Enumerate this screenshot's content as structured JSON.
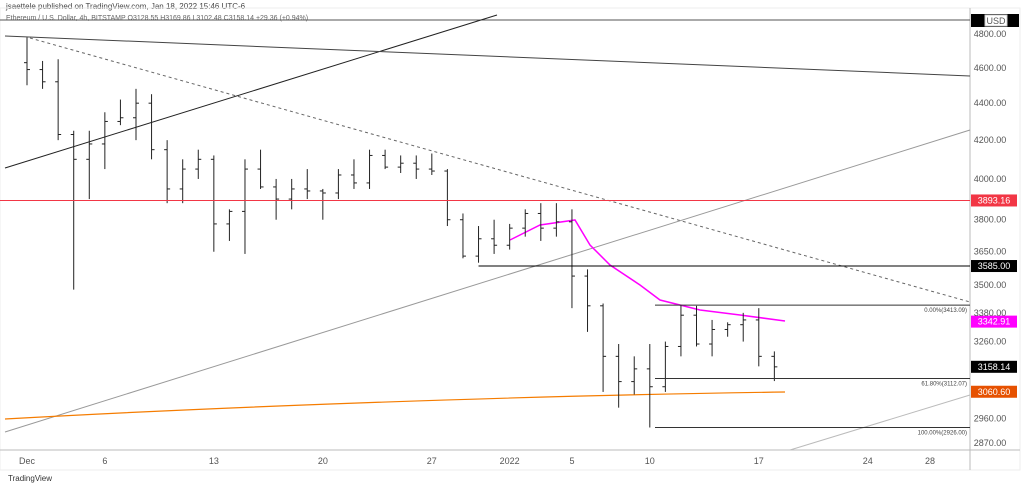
{
  "header": {
    "published": "jsaettele published on TradingView.com, Jan 18, 2022 15:46 UTC-6",
    "symbol": "Ethereum / U.S. Dollar, 4h, BITSTAMP  O3128.55  H3169.86  L3102.48  C3158.14  +29.36 (+0.94%)"
  },
  "logo": "TradingView",
  "currency": "USD",
  "chart_data": {
    "type": "ohlc",
    "scale": "log",
    "ylim": [
      2830,
      4950
    ],
    "y_ticks": [
      4800,
      4600,
      4400,
      4200,
      4000,
      3800,
      3650,
      3500,
      3380,
      3260,
      2960,
      2870
    ],
    "x_ticks": [
      {
        "label": "Dec",
        "day": 0
      },
      {
        "label": "6",
        "day": 5
      },
      {
        "label": "13",
        "day": 12
      },
      {
        "label": "20",
        "day": 19
      },
      {
        "label": "27",
        "day": 26
      },
      {
        "label": "2022",
        "day": 31
      },
      {
        "label": "5",
        "day": 35
      },
      {
        "label": "10",
        "day": 40
      },
      {
        "label": "17",
        "day": 47
      },
      {
        "label": "24",
        "day": 54
      },
      {
        "label": "28",
        "day": 58
      }
    ],
    "ohlc": [
      [
        4630,
        4780,
        4500,
        4590
      ],
      [
        4590,
        4640,
        4480,
        4520
      ],
      [
        4520,
        4650,
        4200,
        4230
      ],
      [
        4230,
        4250,
        3480,
        4100
      ],
      [
        4100,
        4250,
        3900,
        4180
      ],
      [
        4180,
        4350,
        4050,
        4300
      ],
      [
        4300,
        4420,
        4280,
        4320
      ],
      [
        4320,
        4480,
        4200,
        4400
      ],
      [
        4400,
        4450,
        4100,
        4150
      ],
      [
        4150,
        4200,
        3880,
        3950
      ],
      [
        3950,
        4100,
        3880,
        4050
      ],
      [
        4050,
        4150,
        4000,
        4100
      ],
      [
        4100,
        4120,
        3650,
        3780
      ],
      [
        3780,
        3850,
        3700,
        3840
      ],
      [
        3840,
        4100,
        3640,
        4050
      ],
      [
        4050,
        4150,
        3950,
        3960
      ],
      [
        3960,
        4000,
        3800,
        3900
      ],
      [
        3900,
        4000,
        3850,
        3950
      ],
      [
        3950,
        4050,
        3900,
        3940
      ],
      [
        3940,
        3950,
        3800,
        3930
      ],
      [
        3930,
        4050,
        3900,
        4020
      ],
      [
        4020,
        4100,
        3950,
        3980
      ],
      [
        3980,
        4150,
        3950,
        4120
      ],
      [
        4120,
        4150,
        4050,
        4060
      ],
      [
        4060,
        4120,
        4030,
        4080
      ],
      [
        4080,
        4120,
        4000,
        4050
      ],
      [
        4050,
        4130,
        4020,
        4040
      ],
      [
        4040,
        4050,
        3770,
        3800
      ],
      [
        3800,
        3830,
        3620,
        3630
      ],
      [
        3630,
        3770,
        3600,
        3710
      ],
      [
        3710,
        3800,
        3640,
        3680
      ],
      [
        3680,
        3780,
        3660,
        3760
      ],
      [
        3760,
        3850,
        3720,
        3830
      ],
      [
        3830,
        3880,
        3700,
        3760
      ],
      [
        3760,
        3880,
        3720,
        3790
      ],
      [
        3790,
        3850,
        3400,
        3540
      ],
      [
        3540,
        3570,
        3300,
        3410
      ],
      [
        3410,
        3420,
        3060,
        3200
      ],
      [
        3200,
        3250,
        3000,
        3100
      ],
      [
        3100,
        3200,
        3050,
        3150
      ],
      [
        3150,
        3250,
        2926,
        3080
      ],
      [
        3080,
        3260,
        3060,
        3240
      ],
      [
        3240,
        3413,
        3200,
        3370
      ],
      [
        3370,
        3410,
        3240,
        3250
      ],
      [
        3250,
        3350,
        3200,
        3310
      ],
      [
        3310,
        3340,
        3280,
        3330
      ],
      [
        3330,
        3380,
        3260,
        3350
      ],
      [
        3350,
        3400,
        3160,
        3200
      ],
      [
        3200,
        3220,
        3102,
        3158
      ]
    ],
    "levels": [
      {
        "price": 3893.16,
        "label": "3893.16",
        "color": "#f23645",
        "full": true
      },
      {
        "price": 3585.0,
        "label": "3585.00",
        "color": "#000000",
        "from_day": 29
      },
      {
        "price": 3342.91,
        "label": "3342.91",
        "color": "#ff00ff",
        "tag_only": true
      },
      {
        "price": 3158.14,
        "label": "3158.14",
        "color": "#000000",
        "tag_only": true
      },
      {
        "price": 3060.6,
        "label": "3060.60",
        "color": "#e65100",
        "tag_only": true
      }
    ],
    "fib": [
      {
        "price": 3413.09,
        "label": "0.00%(3413.09)"
      },
      {
        "price": 3112.07,
        "label": "61.80%(3112.07)"
      },
      {
        "price": 2926.0,
        "label": "100.00%(2926.00)"
      }
    ]
  }
}
